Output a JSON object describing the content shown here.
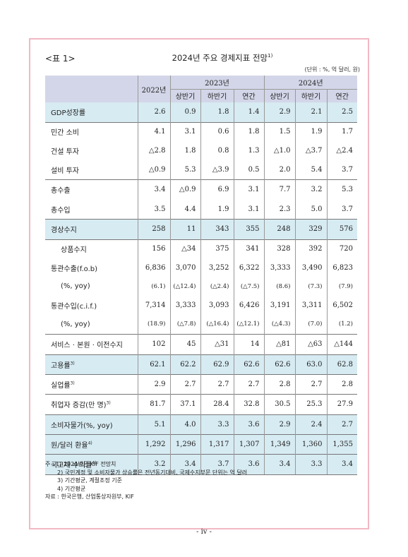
{
  "header": {
    "table_label": "<표 1>",
    "title": "2024년 주요 경제지표 전망",
    "title_sup": "1)",
    "unit": "(단위 : %, 억 달러, 원)"
  },
  "columns": {
    "y2022": "2022년",
    "y2023": "2023년",
    "y2024": "2024년",
    "h1": "상반기",
    "h2": "하반기",
    "annual": "연간"
  },
  "rows": [
    {
      "label": "GDP성장률",
      "values": [
        "2.6",
        "0.9",
        "1.8",
        "1.4",
        "2.9",
        "2.1",
        "2.5"
      ]
    },
    {
      "label": "민간 소비",
      "values": [
        "4.1",
        "3.1",
        "0.6",
        "1.8",
        "1.5",
        "1.9",
        "1.7"
      ]
    },
    {
      "label": "건설 투자",
      "values": [
        "△2.8",
        "1.8",
        "0.8",
        "1.3",
        "△1.0",
        "△3.7",
        "△2.4"
      ]
    },
    {
      "label": "설비 투자",
      "values": [
        "△0.9",
        "5.3",
        "△3.9",
        "0.5",
        "2.0",
        "5.4",
        "3.7"
      ]
    },
    {
      "label": "총수출",
      "values": [
        "3.4",
        "△0.9",
        "6.9",
        "3.1",
        "7.7",
        "3.2",
        "5.3"
      ]
    },
    {
      "label": "총수입",
      "values": [
        "3.5",
        "4.4",
        "1.9",
        "3.1",
        "2.3",
        "5.0",
        "3.7"
      ]
    },
    {
      "label": "경상수지",
      "values": [
        "258",
        "11",
        "343",
        "355",
        "248",
        "329",
        "576"
      ]
    },
    {
      "label": "상품수지",
      "values": [
        "156",
        "△34",
        "375",
        "341",
        "328",
        "392",
        "720"
      ]
    },
    {
      "label": "통관수출(f.o.b)",
      "values": [
        "6,836",
        "3,070",
        "3,252",
        "6,322",
        "3,333",
        "3,490",
        "6,823"
      ]
    },
    {
      "label": "(%, yoy)",
      "values": [
        "(6.1)",
        "(△12.4)",
        "(△2.4)",
        "(△7.5)",
        "(8.6)",
        "(7.3)",
        "(7.9)"
      ]
    },
    {
      "label": "통관수입(c.i.f.)",
      "values": [
        "7,314",
        "3,333",
        "3,093",
        "6,426",
        "3,191",
        "3,311",
        "6,502"
      ]
    },
    {
      "label": "(%, yoy)",
      "values": [
        "(18.9)",
        "(△7.8)",
        "(△16.4)",
        "(△12.1)",
        "(△4.3)",
        "(7.0)",
        "(1.2)"
      ]
    },
    {
      "label": "서비스 · 본원 · 이전수지",
      "values": [
        "102",
        "45",
        "△31",
        "14",
        "△81",
        "△63",
        "△144"
      ]
    },
    {
      "label": "고용률",
      "sup": "3)",
      "values": [
        "62.1",
        "62.2",
        "62.9",
        "62.6",
        "62.6",
        "63.0",
        "62.8"
      ]
    },
    {
      "label": "실업률",
      "sup": "3)",
      "values": [
        "2.9",
        "2.7",
        "2.7",
        "2.7",
        "2.8",
        "2.7",
        "2.8"
      ]
    },
    {
      "label": "취업자 증감(만 명)",
      "sup": "3)",
      "values": [
        "81.7",
        "37.1",
        "28.4",
        "32.8",
        "30.5",
        "25.3",
        "27.9"
      ]
    },
    {
      "label": "소비자물가(%, yoy)",
      "values": [
        "5.1",
        "4.0",
        "3.3",
        "3.6",
        "2.9",
        "2.4",
        "2.7"
      ]
    },
    {
      "label": "원/달러 환율",
      "sup": "4)",
      "values": [
        "1,292",
        "1,296",
        "1,317",
        "1,307",
        "1,349",
        "1,360",
        "1,355"
      ]
    },
    {
      "label": "국고채 수익률",
      "sup": "4)",
      "values": [
        "3.2",
        "3.4",
        "3.7",
        "3.6",
        "3.4",
        "3.3",
        "3.4"
      ]
    }
  ],
  "notes": {
    "n1": "주 : 1) 2024년은 KIF 전망치",
    "n2": "2) 국민계정 및 소비자물가 상승률은 전년동기대비, 국제수지부문 단위는 억 달러",
    "n3": "3) 기간평균, 계절조정 기준",
    "n4": "4) 기간평균",
    "source": "자료 : 한국은행, 산업통상자원부, KIF"
  },
  "page_number": "- iv -"
}
